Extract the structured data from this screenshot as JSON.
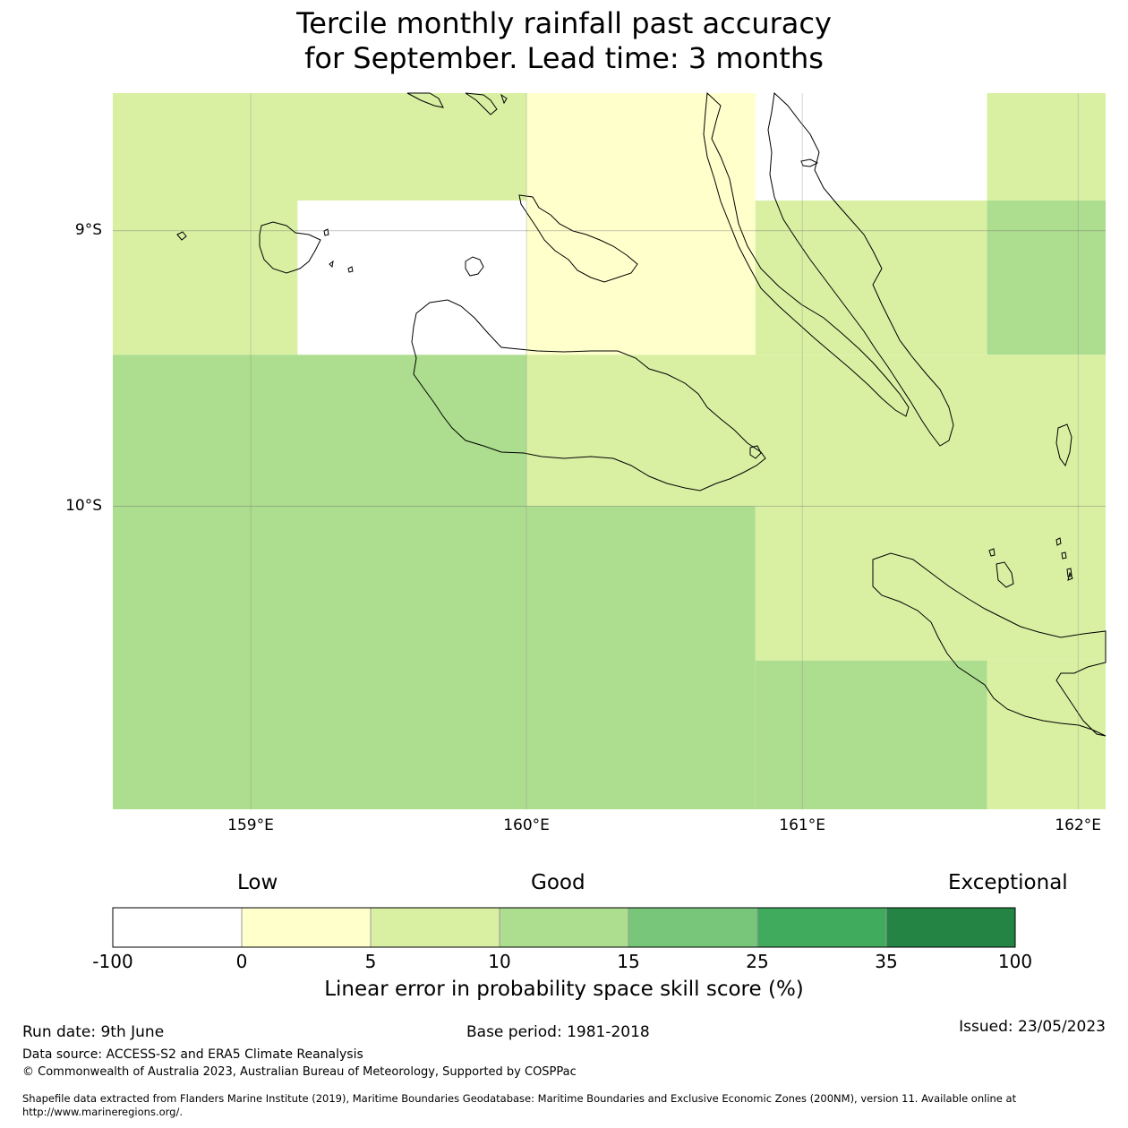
{
  "title_line1": "Tercile monthly rainfall past accuracy",
  "title_line2": "for September. Lead time: 3 months",
  "map": {
    "lat_labels": [
      "9°S",
      "10°S"
    ],
    "lon_labels": [
      "159°E",
      "160°E",
      "161°E",
      "162°E"
    ],
    "extent": {
      "lon_min": 158.5,
      "lon_max": 162.1,
      "lat_north": -8.5,
      "lat_south": -11.1
    },
    "grid_cells": [
      {
        "lon": [
          158.5,
          159.17
        ],
        "lat": [
          -8.5,
          -9.45
        ],
        "category": "5-10"
      },
      {
        "lon": [
          159.17,
          160.0
        ],
        "lat": [
          -8.5,
          -8.89
        ],
        "category": "5-10"
      },
      {
        "lon": [
          159.17,
          160.0
        ],
        "lat": [
          -8.89,
          -9.45
        ],
        "category": "-100-0"
      },
      {
        "lon": [
          160.0,
          160.83
        ],
        "lat": [
          -8.5,
          -9.45
        ],
        "category": "0-5"
      },
      {
        "lon": [
          160.83,
          161.67
        ],
        "lat": [
          -8.5,
          -8.89
        ],
        "category": "-100-0"
      },
      {
        "lon": [
          160.83,
          161.67
        ],
        "lat": [
          -8.89,
          -9.45
        ],
        "category": "5-10"
      },
      {
        "lon": [
          161.67,
          162.1
        ],
        "lat": [
          -8.5,
          -8.89
        ],
        "category": "5-10"
      },
      {
        "lon": [
          161.67,
          162.1
        ],
        "lat": [
          -8.89,
          -9.45
        ],
        "category": "10-15"
      },
      {
        "lon": [
          158.5,
          160.0
        ],
        "lat": [
          -9.45,
          -11.1
        ],
        "category": "10-15"
      },
      {
        "lon": [
          160.0,
          162.1
        ],
        "lat": [
          -9.45,
          -10.0
        ],
        "category": "5-10"
      },
      {
        "lon": [
          160.0,
          160.83
        ],
        "lat": [
          -10.0,
          -11.1
        ],
        "category": "10-15"
      },
      {
        "lon": [
          160.83,
          162.1
        ],
        "lat": [
          -10.0,
          -10.56
        ],
        "category": "5-10"
      },
      {
        "lon": [
          160.83,
          161.67
        ],
        "lat": [
          -10.56,
          -11.1
        ],
        "category": "10-15"
      },
      {
        "lon": [
          161.67,
          162.1
        ],
        "lat": [
          -10.56,
          -11.1
        ],
        "category": "5-10"
      }
    ]
  },
  "legend": {
    "category_labels": [
      "Low",
      "Good",
      "Exceptional"
    ],
    "bins": [
      {
        "from": "-100",
        "to": "0",
        "color": "#ffffff"
      },
      {
        "from": "0",
        "to": "5",
        "color": "#ffffcc"
      },
      {
        "from": "5",
        "to": "10",
        "color": "#d9f0a3"
      },
      {
        "from": "10",
        "to": "15",
        "color": "#addd8e"
      },
      {
        "from": "15",
        "to": "25",
        "color": "#78c679"
      },
      {
        "from": "25",
        "to": "35",
        "color": "#41ab5d"
      },
      {
        "from": "35",
        "to": "100",
        "color": "#238443"
      }
    ],
    "tick_labels": [
      "-100",
      "0",
      "5",
      "10",
      "15",
      "25",
      "35",
      "100"
    ],
    "axis_label": "Linear error in probability space skill score (%)"
  },
  "footer": {
    "run_date": "Run date: 9th June",
    "base_period": "Base period: 1981-2018",
    "issued": "Issued: 23/05/2023",
    "data_source": "Data source: ACCESS-S2 and ERA5 Climate Reanalysis",
    "copyright": "© Commonwealth of Australia 2023, Australian Bureau of Meteorology, Supported by COSPPac",
    "shapefile": "Shapefile data extracted from Flanders Marine Institute (2019), Maritime Boundaries Geodatabase: Maritime Boundaries and Exclusive Economic Zones (200NM), version 11. Available online at http://www.marineregions.org/."
  }
}
